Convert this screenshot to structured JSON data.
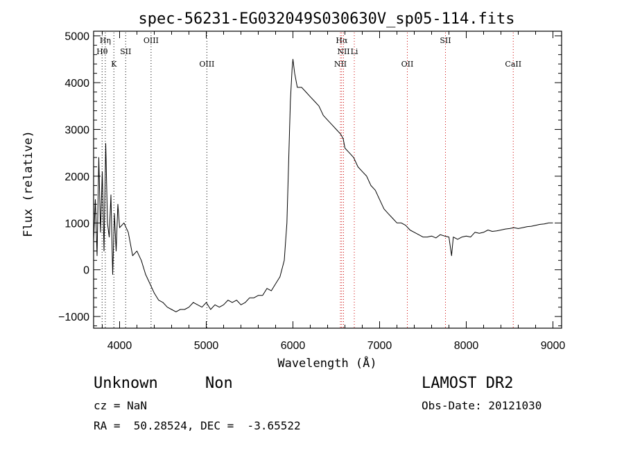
{
  "chart_data": {
    "type": "line",
    "title": "spec-56231-EG032049S030630V_sp05-114.fits",
    "xlabel": "Wavelength (Å)",
    "ylabel": "Flux (relative)",
    "xlim": [
      3700,
      9100
    ],
    "ylim": [
      -1250,
      5100
    ],
    "xticks": [
      4000,
      5000,
      6000,
      7000,
      8000,
      9000
    ],
    "yticks": [
      -1000,
      0,
      1000,
      2000,
      3000,
      4000,
      5000
    ],
    "grid": false,
    "spectral_lines": [
      {
        "label": "Hη",
        "x": 3835,
        "style": "dotted",
        "color": "#000000",
        "row": 0
      },
      {
        "label": "Hθ",
        "x": 3798,
        "style": "dotted",
        "color": "#000000",
        "row": 1
      },
      {
        "label": "SII",
        "x": 4070,
        "style": "dotted",
        "color": "#000000",
        "row": 1
      },
      {
        "label": "K",
        "x": 3934,
        "style": "dotted",
        "color": "#000000",
        "row": 2
      },
      {
        "label": "OIII",
        "x": 4363,
        "style": "dotted",
        "color": "#000000",
        "row": 0
      },
      {
        "label": "OIII",
        "x": 5007,
        "style": "dotted",
        "color": "#000000",
        "row": 2
      },
      {
        "label": "Hα",
        "x": 6563,
        "style": "dotted",
        "color": "#cc0000",
        "row": 0
      },
      {
        "label": "NII",
        "x": 6584,
        "style": "dotted",
        "color": "#cc0000",
        "row": 1
      },
      {
        "label": "Li",
        "x": 6708,
        "style": "dotted",
        "color": "#cc0000",
        "row": 1
      },
      {
        "label": "NII",
        "x": 6548,
        "style": "dotted",
        "color": "#cc0000",
        "row": 2
      },
      {
        "label": "OII",
        "x": 7320,
        "style": "dotted",
        "color": "#cc0000",
        "row": 2
      },
      {
        "label": "SII",
        "x": 7760,
        "style": "dotted",
        "color": "#cc0000",
        "row": 0
      },
      {
        "label": "CaII",
        "x": 8542,
        "style": "dotted",
        "color": "#cc0000",
        "row": 2
      }
    ],
    "series": [
      {
        "color": "#000000",
        "x": [
          3700,
          3720,
          3740,
          3760,
          3780,
          3800,
          3820,
          3840,
          3860,
          3880,
          3900,
          3920,
          3940,
          3960,
          3980,
          4000,
          4050,
          4100,
          4150,
          4200,
          4250,
          4300,
          4350,
          4400,
          4450,
          4500,
          4550,
          4600,
          4650,
          4700,
          4750,
          4800,
          4850,
          4900,
          4950,
          5000,
          5050,
          5100,
          5150,
          5200,
          5250,
          5300,
          5350,
          5400,
          5450,
          5500,
          5550,
          5600,
          5650,
          5700,
          5750,
          5800,
          5850,
          5900,
          5930,
          5950,
          5970,
          5990,
          6000,
          6020,
          6050,
          6100,
          6150,
          6200,
          6250,
          6300,
          6350,
          6400,
          6450,
          6500,
          6550,
          6580,
          6600,
          6650,
          6700,
          6750,
          6800,
          6850,
          6900,
          6950,
          7000,
          7050,
          7100,
          7150,
          7200,
          7250,
          7300,
          7350,
          7400,
          7450,
          7500,
          7550,
          7600,
          7650,
          7700,
          7750,
          7800,
          7830,
          7850,
          7900,
          7950,
          8000,
          8050,
          8100,
          8150,
          8200,
          8250,
          8300,
          8350,
          8400,
          8450,
          8500,
          8550,
          8600,
          8650,
          8700,
          8750,
          8800,
          8850,
          8900,
          8950,
          9000
        ],
        "y": [
          600,
          1500,
          300,
          2400,
          800,
          2100,
          400,
          2700,
          1000,
          700,
          1600,
          -100,
          1200,
          400,
          1400,
          900,
          1000,
          800,
          300,
          400,
          200,
          -100,
          -300,
          -500,
          -650,
          -700,
          -800,
          -850,
          -900,
          -850,
          -850,
          -800,
          -700,
          -750,
          -800,
          -700,
          -850,
          -750,
          -800,
          -750,
          -650,
          -700,
          -650,
          -750,
          -700,
          -600,
          -600,
          -550,
          -550,
          -400,
          -450,
          -300,
          -150,
          200,
          1000,
          2300,
          3600,
          4300,
          4500,
          4200,
          3900,
          3900,
          3800,
          3700,
          3600,
          3500,
          3300,
          3200,
          3100,
          3000,
          2900,
          2800,
          2600,
          2500,
          2400,
          2200,
          2100,
          2000,
          1800,
          1700,
          1500,
          1300,
          1200,
          1100,
          1000,
          1000,
          950,
          850,
          800,
          750,
          700,
          700,
          720,
          680,
          750,
          720,
          700,
          300,
          700,
          650,
          700,
          720,
          700,
          800,
          780,
          800,
          850,
          820,
          830,
          850,
          870,
          880,
          900,
          880,
          900,
          920,
          930,
          950,
          970,
          980,
          1000,
          1000
        ]
      }
    ]
  },
  "info": {
    "class_label": "Unknown",
    "subclass_label": "Non",
    "survey": "LAMOST DR2",
    "cz": "cz = NaN",
    "obs_date": "Obs-Date: 20121030",
    "coords": "RA =  50.28524, DEC =  -3.65522"
  }
}
